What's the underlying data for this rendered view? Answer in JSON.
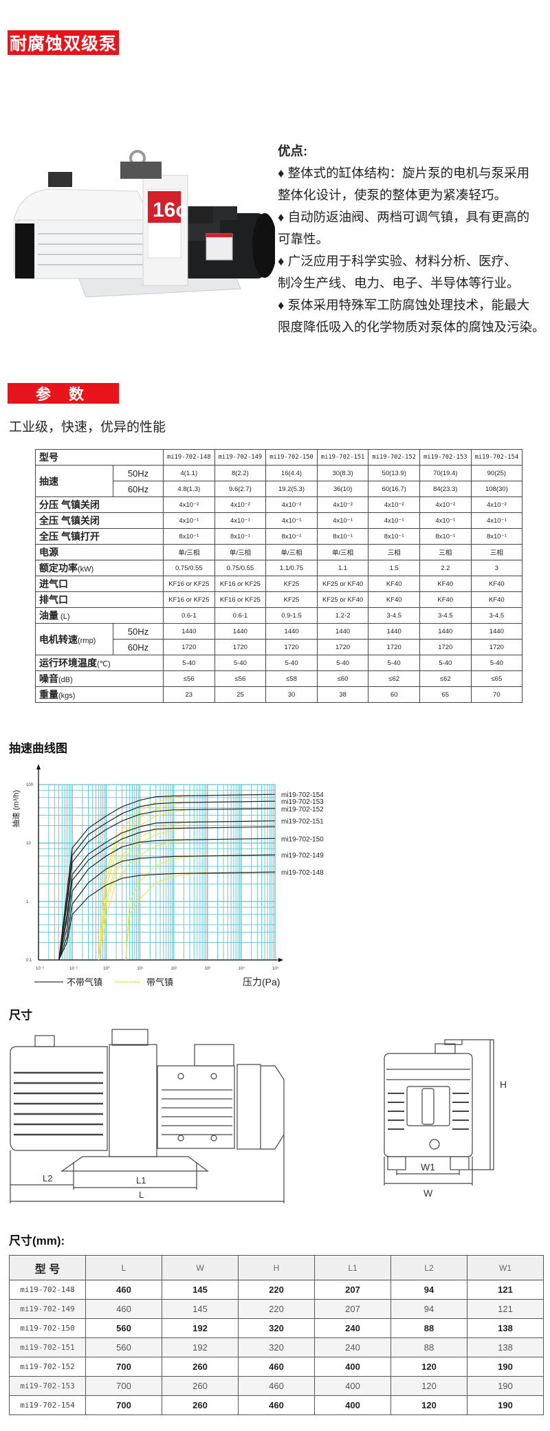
{
  "header": {
    "title": "耐腐蚀双级泵"
  },
  "product_image": {
    "badge": "16c"
  },
  "advantages": {
    "heading": "优点:",
    "bullet_icon": "diamond",
    "lines": [
      "♦ 整体式的缸体结构：旋片泵的电机与泵采用",
      "整体化设计，使泵的整体更为紧凑轻巧。",
      "♦ 自动防返油阀、两档可调气镇，具有更高的",
      "可靠性。",
      "♦ 广泛应用于科学实验、材料分析、医疗、",
      "制冷生产线、电力、电子、半导体等行业。",
      "♦ 泵体采用特殊军工防腐蚀处理技术，能最大",
      "限度降低吸入的化学物质对泵体的腐蚀及污染。"
    ]
  },
  "params": {
    "heading": "参 数",
    "subtitle": "工业级，快速，优异的性能",
    "models": [
      "mi19-702-148",
      "mi19-702-149",
      "mi19-702-150",
      "mi19-702-151",
      "mi19-702-152",
      "mi19-702-153",
      "mi19-702-154"
    ],
    "model_label": "型号",
    "rows": [
      {
        "label": "抽速",
        "unit": "",
        "group": "speed",
        "freq": "50Hz",
        "values": [
          "4(1.1)",
          "8(2.2)",
          "16(4.4)",
          "30(8.3)",
          "50(13.9)",
          "70(19.4)",
          "90(25)"
        ]
      },
      {
        "label": "抽速",
        "unit": "",
        "group": "speed",
        "freq": "60Hz",
        "values": [
          "4.8(1.3)",
          "9.6(2.7)",
          "19.2(5.3)",
          "36(10)",
          "60(16.7)",
          "84(23.3)",
          "108(30)"
        ]
      },
      {
        "label": "分压 气镇关闭",
        "unit": "",
        "values": [
          "4x10⁻²",
          "4x10⁻²",
          "4x10⁻²",
          "4x10⁻²",
          "4x10⁻²",
          "4x10⁻²",
          "4x10⁻²"
        ]
      },
      {
        "label": "全压 气镇关闭",
        "unit": "",
        "values": [
          "4x10⁻¹",
          "4x10⁻¹",
          "4x10⁻¹",
          "4x10⁻¹",
          "4x10⁻¹",
          "4x10⁻¹",
          "4x10⁻¹"
        ]
      },
      {
        "label": "全压 气镇打开",
        "unit": "",
        "values": [
          "8x10⁻¹",
          "8x10⁻¹",
          "8x10⁻¹",
          "8x10⁻¹",
          "8x10⁻¹",
          "8x10⁻¹",
          "8x10⁻¹"
        ]
      },
      {
        "label": "电源",
        "unit": "",
        "values": [
          "单/三相",
          "单/三相",
          "单/三相",
          "单/三相",
          "三相",
          "三相",
          "三相"
        ]
      },
      {
        "label": "额定功率",
        "unit": "(kW)",
        "values": [
          "0.75/0.55",
          "0.75/0.55",
          "1.1/0.75",
          "1.1",
          "1.5",
          "2.2",
          "3"
        ]
      },
      {
        "label": "进气口",
        "unit": "",
        "values": [
          "KF16 or KF25",
          "KF16 or KF25",
          "KF25",
          "KF25 or KF40",
          "KF40",
          "KF40",
          "KF40"
        ]
      },
      {
        "label": "排气口",
        "unit": "",
        "values": [
          "KF16 or KF25",
          "KF16 or KF25",
          "KF25",
          "KF25 or KF40",
          "KF40",
          "KF40",
          "KF40"
        ]
      },
      {
        "label": "油量",
        "unit": " (L)",
        "values": [
          "0.6-1",
          "0.6-1",
          "0.9-1.5",
          "1.2-2",
          "3-4.5",
          "3-4.5",
          "3-4.5"
        ]
      },
      {
        "label": "电机转速",
        "unit": "(rmp)",
        "group": "rpm",
        "freq": "50Hz",
        "values": [
          "1440",
          "1440",
          "1440",
          "1440",
          "1440",
          "1440",
          "1440"
        ]
      },
      {
        "label": "电机转速",
        "unit": "(rmp)",
        "group": "rpm",
        "freq": "60Hz",
        "values": [
          "1720",
          "1720",
          "1720",
          "1720",
          "1720",
          "1720",
          "1720"
        ]
      },
      {
        "label": "运行环境温度",
        "unit": "(℃)",
        "values": [
          "5-40",
          "5-40",
          "5-40",
          "5-40",
          "5-40",
          "5-40",
          "5-40"
        ]
      },
      {
        "label": "噪音",
        "unit": "(dB)",
        "values": [
          "≤56",
          "≤56",
          "≤58",
          "≤60",
          "≤62",
          "≤62",
          "≤65"
        ]
      },
      {
        "label": "重量",
        "unit": "(kgs)",
        "values": [
          "23",
          "25",
          "30",
          "38",
          "60",
          "65",
          "70"
        ]
      }
    ]
  },
  "chart_data": {
    "type": "line",
    "title": "抽速曲线图",
    "xlabel": "压力(Pa)",
    "ylabel": "抽速 (m³/h)",
    "x_scale": "log",
    "y_scale": "log",
    "xlim": [
      0.01,
      100000
    ],
    "ylim": [
      0.1,
      100
    ],
    "x_ticks": [
      "10⁻²",
      "10⁻¹",
      "10⁰",
      "10¹",
      "10²",
      "10³",
      "10⁴",
      "10⁵"
    ],
    "y_ticks": [
      "100",
      "10",
      "1",
      "0.1"
    ],
    "y_tick_values": [
      100,
      10,
      1,
      0.1
    ],
    "grid": true,
    "grid_color": "#5bc3d2",
    "legend": {
      "placement": "bottom",
      "entries": [
        {
          "label": "不带气镇",
          "color": "#222222"
        },
        {
          "label": "带气镇",
          "color": "#f0e63c"
        }
      ]
    },
    "series_without_gas_ballast": [
      {
        "name": "mi19-702-154",
        "points": [
          [
            0.04,
            0.1
          ],
          [
            0.07,
            1.5
          ],
          [
            0.1,
            8.2
          ],
          [
            0.3,
            18
          ],
          [
            1,
            29
          ],
          [
            3,
            42
          ],
          [
            10,
            54
          ],
          [
            30,
            62
          ],
          [
            100,
            64
          ],
          [
            100000,
            68
          ]
        ]
      },
      {
        "name": "mi19-702-153",
        "points": [
          [
            0.04,
            0.1
          ],
          [
            0.07,
            1.1
          ],
          [
            0.1,
            6.2
          ],
          [
            0.3,
            14
          ],
          [
            1,
            22
          ],
          [
            3,
            32
          ],
          [
            10,
            42
          ],
          [
            30,
            47
          ],
          [
            100,
            49
          ],
          [
            100000,
            52
          ]
        ]
      },
      {
        "name": "mi19-702-152",
        "points": [
          [
            0.04,
            0.1
          ],
          [
            0.07,
            0.9
          ],
          [
            0.1,
            4.7
          ],
          [
            0.3,
            10.5
          ],
          [
            1,
            17
          ],
          [
            3,
            24
          ],
          [
            10,
            31
          ],
          [
            30,
            35
          ],
          [
            100,
            37
          ],
          [
            100000,
            39
          ]
        ]
      },
      {
        "name": "mi19-702-151",
        "points": [
          [
            0.04,
            0.1
          ],
          [
            0.07,
            0.6
          ],
          [
            0.1,
            2.9
          ],
          [
            0.3,
            6.5
          ],
          [
            1,
            10.3
          ],
          [
            3,
            15
          ],
          [
            10,
            19
          ],
          [
            30,
            22
          ],
          [
            100,
            22.6
          ],
          [
            100000,
            24
          ]
        ]
      },
      {
        "name": "",
        "points": [
          [
            0.04,
            0.1
          ],
          [
            0.07,
            0.5
          ],
          [
            0.1,
            2.3
          ],
          [
            0.3,
            5.1
          ],
          [
            1,
            8.2
          ],
          [
            3,
            11.8
          ],
          [
            10,
            15.2
          ],
          [
            30,
            17.3
          ],
          [
            100,
            17.9
          ],
          [
            100000,
            19
          ]
        ]
      },
      {
        "name": "mi19-702-150",
        "points": [
          [
            0.04,
            0.1
          ],
          [
            0.07,
            0.35
          ],
          [
            0.1,
            1.5
          ],
          [
            0.3,
            3.6
          ],
          [
            1,
            6
          ],
          [
            3,
            8.6
          ],
          [
            10,
            10.4
          ],
          [
            30,
            11
          ],
          [
            100,
            11.3
          ],
          [
            100000,
            12
          ]
        ]
      },
      {
        "name": "mi19-702-149",
        "points": [
          [
            0.04,
            0.1
          ],
          [
            0.07,
            0.25
          ],
          [
            0.1,
            0.9
          ],
          [
            0.3,
            2.1
          ],
          [
            1,
            3.6
          ],
          [
            3,
            4.9
          ],
          [
            10,
            5.5
          ],
          [
            30,
            5.7
          ],
          [
            100,
            5.9
          ],
          [
            100000,
            6.3
          ]
        ]
      },
      {
        "name": "mi19-702-148",
        "points": [
          [
            0.04,
            0.1
          ],
          [
            0.07,
            0.2
          ],
          [
            0.1,
            0.6
          ],
          [
            0.3,
            1.2
          ],
          [
            1,
            1.9
          ],
          [
            3,
            2.5
          ],
          [
            10,
            2.8
          ],
          [
            30,
            2.9
          ],
          [
            100,
            3
          ],
          [
            100000,
            3.2
          ]
        ]
      }
    ],
    "series_with_gas_ballast": [
      {
        "points": [
          [
            0.6,
            0.1
          ],
          [
            1,
            3
          ],
          [
            2,
            12
          ],
          [
            5,
            25
          ],
          [
            10,
            35
          ],
          [
            30,
            50
          ],
          [
            100,
            60
          ],
          [
            300,
            67
          ]
        ]
      },
      {
        "points": [
          [
            0.6,
            0.1
          ],
          [
            1,
            2.3
          ],
          [
            2,
            9.4
          ],
          [
            5,
            19
          ],
          [
            10,
            27
          ],
          [
            30,
            38
          ],
          [
            100,
            46
          ],
          [
            300,
            51
          ]
        ]
      },
      {
        "points": [
          [
            0.6,
            0.1
          ],
          [
            1,
            1.8
          ],
          [
            2,
            7
          ],
          [
            5,
            14
          ],
          [
            10,
            20
          ],
          [
            30,
            29
          ],
          [
            100,
            34
          ],
          [
            300,
            38
          ]
        ]
      },
      {
        "points": [
          [
            0.6,
            0.1
          ],
          [
            1,
            1.1
          ],
          [
            2,
            4.3
          ],
          [
            5,
            8.9
          ],
          [
            10,
            12.5
          ],
          [
            30,
            17.8
          ],
          [
            100,
            21
          ],
          [
            300,
            23.5
          ]
        ]
      },
      {
        "points": [
          [
            0.6,
            0.1
          ],
          [
            1,
            0.9
          ],
          [
            2,
            3.4
          ],
          [
            5,
            7
          ],
          [
            10,
            9.9
          ],
          [
            30,
            14
          ],
          [
            100,
            16.7
          ],
          [
            300,
            18.6
          ]
        ]
      },
      {
        "points": [
          [
            0.6,
            0.1
          ],
          [
            1,
            0.55
          ],
          [
            2,
            2.2
          ],
          [
            5,
            4.4
          ],
          [
            10,
            6.2
          ],
          [
            30,
            8.9
          ],
          [
            100,
            10.6
          ],
          [
            300,
            11.8
          ]
        ]
      },
      {
        "points": [
          [
            3.8,
            0.1
          ],
          [
            5,
            1
          ],
          [
            10,
            2.2
          ],
          [
            30,
            4.1
          ],
          [
            100,
            5.4
          ],
          [
            1000,
            6.3
          ]
        ]
      },
      {
        "points": [
          [
            3.8,
            0.1
          ],
          [
            5,
            0.6
          ],
          [
            10,
            1.1
          ],
          [
            30,
            2.1
          ],
          [
            100,
            2.7
          ],
          [
            1000,
            3.2
          ]
        ]
      }
    ]
  },
  "dimensions": {
    "heading": "尺寸",
    "labels": {
      "L": "L",
      "L1": "L1",
      "L2": "L2",
      "W": "W",
      "W1": "W1",
      "H": "H"
    },
    "table_heading": "尺寸(mm):",
    "columns": [
      "型 号",
      "L",
      "W",
      "H",
      "L1",
      "L2",
      "W1"
    ],
    "rows": [
      [
        "mi19-702-148",
        "460",
        "145",
        "220",
        "207",
        "94",
        "121"
      ],
      [
        "mi19-702-149",
        "460",
        "145",
        "220",
        "207",
        "94",
        "121"
      ],
      [
        "mi19-702-150",
        "560",
        "192",
        "320",
        "240",
        "88",
        "138"
      ],
      [
        "mi19-702-151",
        "560",
        "192",
        "320",
        "240",
        "88",
        "138"
      ],
      [
        "mi19-702-152",
        "700",
        "260",
        "460",
        "400",
        "120",
        "190"
      ],
      [
        "mi19-702-153",
        "700",
        "260",
        "460",
        "400",
        "120",
        "190"
      ],
      [
        "mi19-702-154",
        "700",
        "260",
        "460",
        "400",
        "120",
        "190"
      ]
    ]
  }
}
